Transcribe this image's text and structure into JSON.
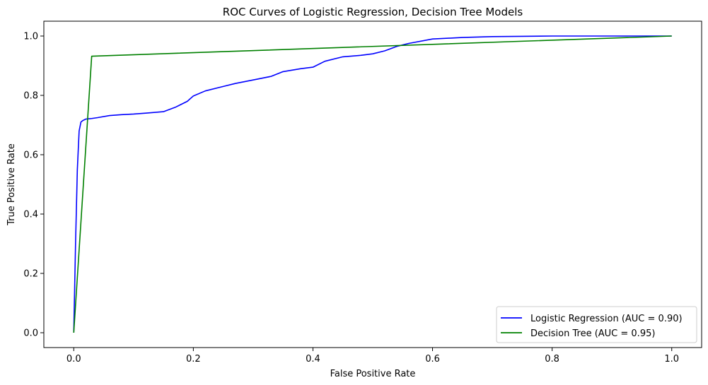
{
  "chart_data": {
    "type": "line",
    "title": "ROC Curves of Logistic Regression, Decision Tree Models",
    "xlabel": "False Positive Rate",
    "ylabel": "True Positive Rate",
    "xlim": [
      -0.05,
      1.05
    ],
    "ylim": [
      -0.05,
      1.05
    ],
    "xticks": [
      0.0,
      0.2,
      0.4,
      0.6,
      0.8,
      1.0
    ],
    "yticks": [
      0.0,
      0.2,
      0.4,
      0.6,
      0.8,
      1.0
    ],
    "xtick_labels": [
      "0.0",
      "0.2",
      "0.4",
      "0.6",
      "0.8",
      "1.0"
    ],
    "ytick_labels": [
      "0.0",
      "0.2",
      "0.4",
      "0.6",
      "0.8",
      "1.0"
    ],
    "grid": false,
    "legend_position": "lower-right",
    "series": [
      {
        "name": "Logistic Regression (AUC = 0.90)",
        "color": "#0000ff",
        "x": [
          0,
          0.003,
          0.006,
          0.009,
          0.012,
          0.015,
          0.02,
          0.03,
          0.04,
          0.06,
          0.08,
          0.1,
          0.12,
          0.15,
          0.17,
          0.19,
          0.2,
          0.22,
          0.25,
          0.27,
          0.3,
          0.33,
          0.35,
          0.38,
          0.4,
          0.42,
          0.45,
          0.48,
          0.5,
          0.52,
          0.54,
          0.56,
          0.6,
          0.65,
          0.7,
          0.75,
          0.8,
          1.0
        ],
        "y": [
          0,
          0.3,
          0.55,
          0.68,
          0.71,
          0.715,
          0.72,
          0.722,
          0.725,
          0.732,
          0.735,
          0.737,
          0.74,
          0.745,
          0.76,
          0.78,
          0.798,
          0.815,
          0.83,
          0.84,
          0.852,
          0.864,
          0.88,
          0.89,
          0.895,
          0.915,
          0.93,
          0.935,
          0.94,
          0.95,
          0.965,
          0.975,
          0.99,
          0.995,
          0.998,
          0.999,
          1.0,
          1.0
        ]
      },
      {
        "name": "Decision Tree (AUC = 0.95)",
        "color": "#008000",
        "x": [
          0,
          0.03,
          1.0
        ],
        "y": [
          0,
          0.932,
          1.0
        ]
      }
    ]
  }
}
